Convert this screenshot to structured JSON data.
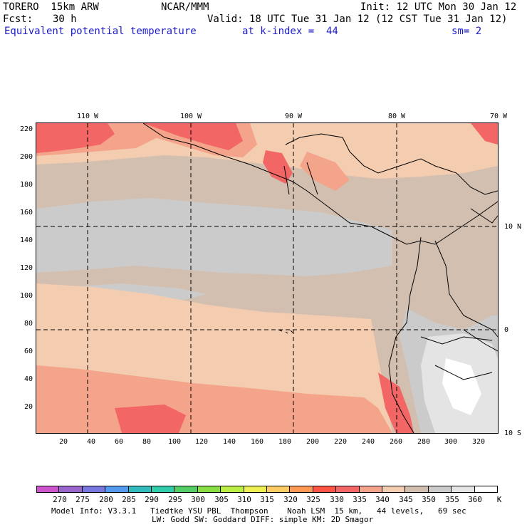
{
  "header": {
    "model": "TORERO  15km ARW",
    "org": "NCAR/MMM",
    "init": "Init: 12 UTC Mon 30 Jan 12",
    "fcst_label": "Fcst:",
    "fcst_value": "30 h",
    "valid": "Valid: 18 UTC Tue 31 Jan 12 (12 CST Tue 31 Jan 12)",
    "field": "Equivalent potential temperature",
    "level": "at k-index =  44",
    "smooth": "sm= 2"
  },
  "map": {
    "lon_labels": [
      "110 W",
      "100 W",
      "90 W",
      "80 W",
      "70 W"
    ],
    "lat_labels": [
      "10 N",
      "0",
      "10 S"
    ],
    "y_ticks": [
      "220",
      "200",
      "180",
      "160",
      "140",
      "120",
      "100",
      "80",
      "60",
      "40",
      "20"
    ],
    "x_ticks": [
      "20",
      "40",
      "60",
      "80",
      "100",
      "120",
      "140",
      "160",
      "180",
      "200",
      "220",
      "240",
      "260",
      "280",
      "300",
      "320"
    ]
  },
  "colorbar": {
    "unit": "K",
    "labels": [
      "270",
      "275",
      "280",
      "285",
      "290",
      "295",
      "300",
      "305",
      "310",
      "315",
      "320",
      "325",
      "330",
      "335",
      "340",
      "345",
      "350",
      "355",
      "360"
    ],
    "colors": [
      "#cc55cc",
      "#9966cc",
      "#7777dd",
      "#5599ee",
      "#33bbbb",
      "#33ccaa",
      "#55cc66",
      "#88dd44",
      "#bbee44",
      "#eeee55",
      "#ffcc66",
      "#ff9955",
      "#ff5544",
      "#f26666",
      "#f4a48a",
      "#f4ccb0",
      "#d2bfb0",
      "#cbcbcb",
      "#e4e4e4",
      "#ffffff"
    ]
  },
  "footer": {
    "line1": "Model Info: V3.3.1   Tiedtke YSU PBL  Thompson    Noah LSM  15 km,   44 levels,   69 sec",
    "line2": "LW: Godd SW: Goddard DIFF: simple KM: 2D Smagor"
  }
}
